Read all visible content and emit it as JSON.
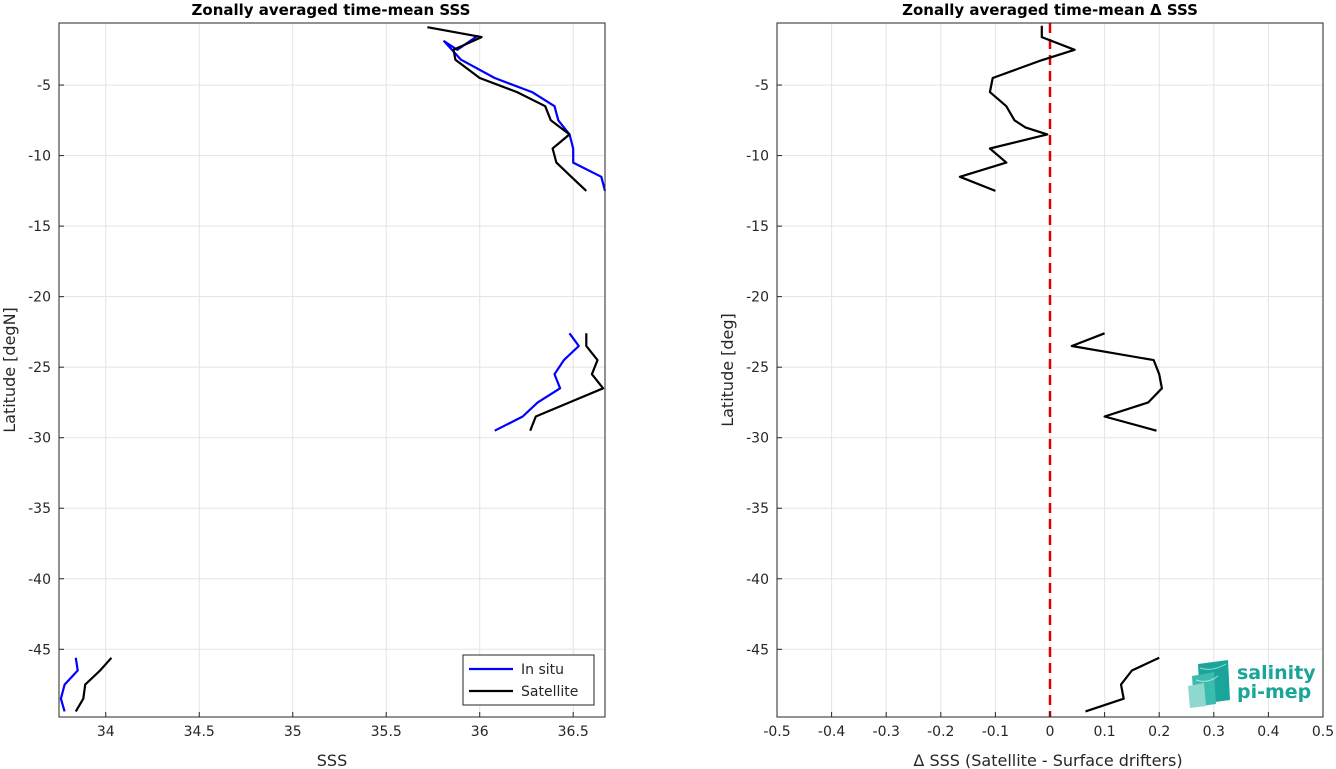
{
  "chart_data": [
    {
      "type": "line",
      "title": "Zonally averaged time-mean SSS",
      "xlabel": "SSS",
      "ylabel": "Latitude [degN]",
      "xlim": [
        33.75,
        36.67
      ],
      "ylim": [
        -49.8,
        -0.6
      ],
      "xticks": [
        34,
        34.5,
        35,
        35.5,
        36,
        36.5
      ],
      "xtick_labels": [
        "34",
        "34.5",
        "35",
        "35.5",
        "36",
        "36.5"
      ],
      "yticks": [
        -5,
        -10,
        -15,
        -20,
        -25,
        -30,
        -35,
        -40,
        -45
      ],
      "ytick_labels": [
        "-5",
        "-10",
        "-15",
        "-20",
        "-25",
        "-30",
        "-35",
        "-40",
        "-45"
      ],
      "grid": true,
      "legend_position": "bottom-right",
      "series": [
        {
          "name": "In situ",
          "color": "#0000ff",
          "segments": [
            [
              [
                35.99,
                -1.5
              ],
              [
                35.88,
                -2.5
              ],
              [
                35.81,
                -1.9
              ],
              [
                35.9,
                -3.2
              ],
              [
                36.08,
                -4.5
              ],
              [
                36.28,
                -5.5
              ],
              [
                36.4,
                -6.5
              ],
              [
                36.42,
                -7.5
              ],
              [
                36.48,
                -8.5
              ],
              [
                36.5,
                -9.5
              ],
              [
                36.5,
                -10.5
              ],
              [
                36.65,
                -11.5
              ],
              [
                36.67,
                -12.5
              ]
            ],
            [
              [
                36.48,
                -22.6
              ],
              [
                36.53,
                -23.5
              ],
              [
                36.45,
                -24.5
              ],
              [
                36.4,
                -25.5
              ],
              [
                36.43,
                -26.5
              ],
              [
                36.31,
                -27.5
              ],
              [
                36.23,
                -28.5
              ],
              [
                36.08,
                -29.5
              ]
            ],
            [
              [
                33.84,
                -45.6
              ],
              [
                33.85,
                -46.5
              ],
              [
                33.78,
                -47.5
              ],
              [
                33.76,
                -48.5
              ],
              [
                33.78,
                -49.4
              ]
            ]
          ]
        },
        {
          "name": "Satellite",
          "color": "#000000",
          "segments": [
            [
              [
                35.72,
                -0.9
              ],
              [
                36.01,
                -1.6
              ],
              [
                35.86,
                -2.5
              ],
              [
                35.87,
                -3.2
              ],
              [
                36.0,
                -4.5
              ],
              [
                36.2,
                -5.5
              ],
              [
                36.35,
                -6.5
              ],
              [
                36.38,
                -7.5
              ],
              [
                36.48,
                -8.5
              ],
              [
                36.39,
                -9.5
              ],
              [
                36.41,
                -10.5
              ],
              [
                36.49,
                -11.5
              ],
              [
                36.57,
                -12.5
              ]
            ],
            [
              [
                36.57,
                -22.6
              ],
              [
                36.57,
                -23.5
              ],
              [
                36.63,
                -24.5
              ],
              [
                36.6,
                -25.5
              ],
              [
                36.66,
                -26.5
              ],
              [
                36.48,
                -27.5
              ],
              [
                36.3,
                -28.5
              ],
              [
                36.27,
                -29.5
              ]
            ],
            [
              [
                34.03,
                -45.6
              ],
              [
                33.97,
                -46.5
              ],
              [
                33.89,
                -47.5
              ],
              [
                33.88,
                -48.5
              ],
              [
                33.84,
                -49.4
              ]
            ]
          ]
        }
      ]
    },
    {
      "type": "line",
      "title": "Zonally averaged time-mean Δ SSS",
      "xlabel": "Δ SSS (Satellite - Surface drifters)",
      "ylabel": "Latitude [deg]",
      "xlim": [
        -0.5,
        0.5
      ],
      "ylim": [
        -49.8,
        -0.6
      ],
      "xticks": [
        -0.5,
        -0.4,
        -0.3,
        -0.2,
        -0.1,
        0,
        0.1,
        0.2,
        0.3,
        0.4,
        0.5
      ],
      "xtick_labels": [
        "-0.5",
        "-0.4",
        "-0.3",
        "-0.2",
        "-0.1",
        "0",
        "0.1",
        "0.2",
        "0.3",
        "0.4",
        "0.5"
      ],
      "yticks": [
        -5,
        -10,
        -15,
        -20,
        -25,
        -30,
        -35,
        -40,
        -45
      ],
      "ytick_labels": [
        "-5",
        "-10",
        "-15",
        "-20",
        "-25",
        "-30",
        "-35",
        "-40",
        "-45"
      ],
      "grid": true,
      "reference_line": {
        "x": 0,
        "color": "#e00000",
        "style": "dashed"
      },
      "series": [
        {
          "color": "#000000",
          "segments": [
            [
              [
                -0.015,
                -0.8
              ],
              [
                -0.015,
                -1.6
              ],
              [
                0.045,
                -2.5
              ],
              [
                -0.02,
                -3.3
              ],
              [
                -0.105,
                -4.5
              ],
              [
                -0.11,
                -5.5
              ],
              [
                -0.08,
                -6.5
              ],
              [
                -0.065,
                -7.5
              ],
              [
                -0.045,
                -8
              ],
              [
                -0.005,
                -8.5
              ],
              [
                -0.11,
                -9.5
              ],
              [
                -0.08,
                -10.5
              ],
              [
                -0.165,
                -11.5
              ],
              [
                -0.1,
                -12.5
              ]
            ],
            [
              [
                0.1,
                -22.6
              ],
              [
                0.04,
                -23.5
              ],
              [
                0.19,
                -24.5
              ],
              [
                0.2,
                -25.5
              ],
              [
                0.205,
                -26.5
              ],
              [
                0.18,
                -27.5
              ],
              [
                0.1,
                -28.5
              ],
              [
                0.195,
                -29.5
              ]
            ],
            [
              [
                0.2,
                -45.6
              ],
              [
                0.15,
                -46.5
              ],
              [
                0.13,
                -47.5
              ],
              [
                0.135,
                -48.5
              ],
              [
                0.065,
                -49.4
              ]
            ]
          ]
        }
      ]
    }
  ],
  "legend": {
    "items": [
      {
        "label": "In situ",
        "color": "#0000ff"
      },
      {
        "label": "Satellite",
        "color": "#000000"
      }
    ]
  },
  "logo": {
    "line1": "salinity",
    "line2": "pi-mep",
    "color": "#1aa59a"
  }
}
